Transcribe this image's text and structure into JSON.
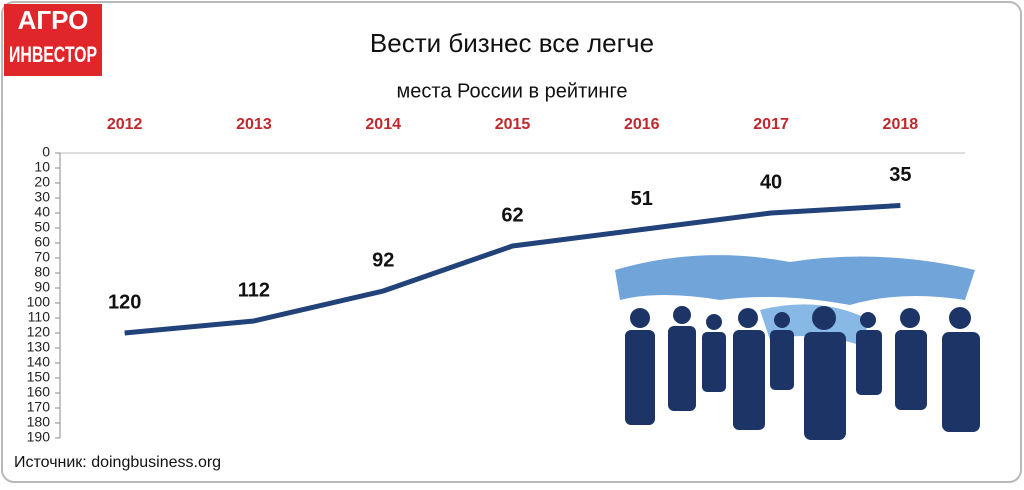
{
  "logo": {
    "line1": "АГРО",
    "line2": "ИНВЕСТОР"
  },
  "chart_data": {
    "type": "line",
    "title": "Вести бизнес все легче",
    "subtitle": "места России в рейтинге",
    "categories": [
      "2012",
      "2013",
      "2014",
      "2015",
      "2016",
      "2017",
      "2018"
    ],
    "values": [
      120,
      112,
      92,
      62,
      51,
      40,
      35
    ],
    "color": "#22427a",
    "ylim": [
      0,
      190
    ],
    "y_inverted": true,
    "yticks": [
      0,
      10,
      20,
      30,
      40,
      50,
      60,
      70,
      80,
      90,
      100,
      110,
      120,
      130,
      140,
      150,
      160,
      170,
      180,
      190
    ],
    "category_color": "#c0282d",
    "source": "Источник:  doingbusiness.org"
  }
}
